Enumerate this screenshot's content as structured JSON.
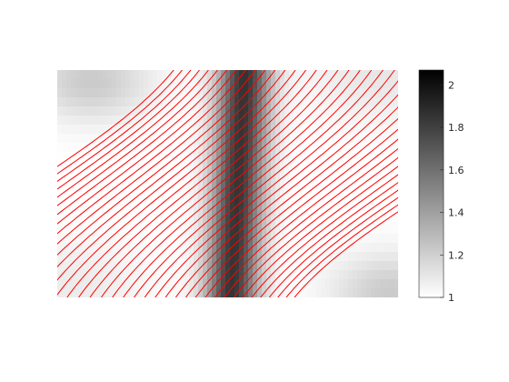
{
  "chart_data": {
    "type": "heatmap",
    "title": "",
    "xlabel": "",
    "ylabel": "",
    "colormap": "gray-reversed",
    "contour_color": "#ff0000",
    "contour_count": 38,
    "colorbar": {
      "range": [
        1,
        2.07
      ],
      "ticks": [
        1,
        1.2,
        1.4,
        1.6,
        1.8,
        2
      ],
      "tick_labels": [
        "1",
        "1.2",
        "1.4",
        "1.6",
        "1.8",
        "2"
      ],
      "placement": "right"
    },
    "axes_visible": false
  }
}
